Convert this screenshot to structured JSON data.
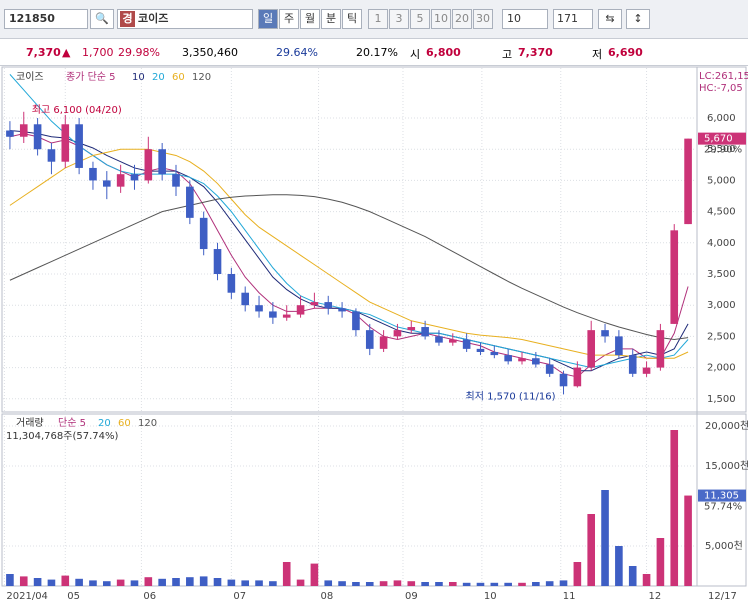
{
  "toolbar": {
    "code": "121850",
    "badge": "경",
    "name": "코이즈",
    "periods": [
      "일",
      "주",
      "월",
      "분",
      "틱"
    ],
    "intervals": [
      "1",
      "3",
      "5",
      "10",
      "20",
      "30"
    ],
    "count_select": "10",
    "count": "171"
  },
  "info": {
    "price": "7,370",
    "change": "1,700",
    "change_pct": "29.98%",
    "volume": "3,350,460",
    "vol_pct": "29.64%",
    "turnover": "20.17%",
    "open_label": "시",
    "open": "6,800",
    "high_label": "고",
    "high": "7,370",
    "low_label": "저",
    "low": "6,690"
  },
  "chart_data": [
    {
      "type": "candlestick",
      "legend_title": "코이즈",
      "legend_method": "종가 단순 5",
      "corner_labels": [
        "LC:261,15",
        "HC:-7,05"
      ],
      "last_label": "5,670",
      "last_pct": "29.90%",
      "high_note": "최고 6,100 (04/20)",
      "low_note": "최저 1,570 (11/16)",
      "up_color": "#cc3377",
      "down_color": "#3e5ec4",
      "open": [
        5800,
        5700,
        5900,
        5500,
        5300,
        5900,
        5200,
        5000,
        4900,
        5100,
        5000,
        5500,
        5100,
        4900,
        4400,
        3900,
        3500,
        3200,
        3000,
        2900,
        2800,
        2850,
        3000,
        3050,
        2950,
        2900,
        2600,
        2300,
        2500,
        2600,
        2650,
        2500,
        2400,
        2450,
        2300,
        2250,
        2200,
        2100,
        2150,
        2050,
        1900,
        1700,
        2000,
        2600,
        2500,
        2200,
        1900,
        2000,
        2700,
        4300
      ],
      "high": [
        5950,
        6100,
        6000,
        5600,
        6050,
        6000,
        5300,
        5150,
        5250,
        5250,
        5700,
        5600,
        5250,
        5000,
        4500,
        4000,
        3600,
        3300,
        3150,
        3050,
        3000,
        3150,
        3200,
        3150,
        3050,
        2950,
        2700,
        2600,
        2700,
        2750,
        2750,
        2600,
        2550,
        2550,
        2400,
        2350,
        2300,
        2250,
        2250,
        2150,
        1950,
        2100,
        2750,
        2700,
        2600,
        2300,
        2100,
        2700,
        4300,
        5670
      ],
      "low": [
        5500,
        5600,
        5400,
        5100,
        5200,
        5100,
        4850,
        4700,
        4800,
        4850,
        4950,
        5000,
        4750,
        4300,
        3800,
        3400,
        3100,
        2900,
        2800,
        2700,
        2750,
        2800,
        2950,
        2850,
        2800,
        2500,
        2200,
        2250,
        2450,
        2550,
        2450,
        2350,
        2350,
        2250,
        2200,
        2150,
        2050,
        2050,
        2000,
        1850,
        1570,
        1680,
        1950,
        2400,
        2150,
        1850,
        1850,
        1950,
        2700,
        4300
      ],
      "close": [
        5700,
        5900,
        5500,
        5300,
        5900,
        5200,
        5000,
        4900,
        5100,
        5000,
        5500,
        5100,
        4900,
        4400,
        3900,
        3500,
        3200,
        3000,
        2900,
        2800,
        2850,
        3000,
        3050,
        2950,
        2900,
        2600,
        2300,
        2500,
        2600,
        2650,
        2500,
        2400,
        2450,
        2300,
        2250,
        2200,
        2100,
        2150,
        2050,
        1900,
        1700,
        2000,
        2600,
        2500,
        2200,
        1900,
        2000,
        2600,
        4200,
        5670
      ],
      "series": [
        {
          "name": "5",
          "color": "#b0307a",
          "values": [
            5700,
            5750,
            5700,
            5600,
            5650,
            5550,
            5400,
            5250,
            5150,
            5050,
            5150,
            5200,
            5150,
            4950,
            4600,
            4200,
            3800,
            3450,
            3200,
            3000,
            2900,
            2900,
            2950,
            2950,
            2950,
            2850,
            2650,
            2500,
            2450,
            2500,
            2550,
            2500,
            2450,
            2400,
            2350,
            2250,
            2200,
            2150,
            2100,
            2050,
            1900,
            1850,
            2050,
            2200,
            2300,
            2300,
            2150,
            2150,
            2550,
            3300
          ]
        },
        {
          "name": "10",
          "color": "#1e2a78",
          "values": [
            5800,
            5780,
            5750,
            5700,
            5680,
            5600,
            5520,
            5400,
            5300,
            5200,
            5150,
            5150,
            5150,
            5050,
            4900,
            4650,
            4350,
            4050,
            3750,
            3450,
            3250,
            3100,
            3000,
            2950,
            2950,
            2900,
            2800,
            2700,
            2600,
            2550,
            2550,
            2550,
            2500,
            2450,
            2400,
            2350,
            2300,
            2250,
            2200,
            2150,
            2050,
            1950,
            1950,
            2050,
            2150,
            2200,
            2250,
            2200,
            2300,
            2700
          ]
        },
        {
          "name": "20",
          "color": "#22a8d8",
          "values": [
            6700,
            6450,
            6200,
            5950,
            5750,
            5550,
            5400,
            5250,
            5150,
            5100,
            5100,
            5100,
            5100,
            5050,
            4950,
            4750,
            4500,
            4200,
            3900,
            3600,
            3350,
            3150,
            3050,
            3000,
            2950,
            2900,
            2850,
            2750,
            2650,
            2600,
            2550,
            2550,
            2500,
            2450,
            2400,
            2350,
            2300,
            2250,
            2200,
            2150,
            2100,
            2050,
            2000,
            2050,
            2100,
            2150,
            2200,
            2150,
            2200,
            2450
          ]
        },
        {
          "name": "60",
          "color": "#e8b020",
          "values": [
            4600,
            4750,
            4900,
            5050,
            5200,
            5300,
            5400,
            5450,
            5500,
            5500,
            5500,
            5450,
            5400,
            5300,
            5150,
            4950,
            4700,
            4450,
            4250,
            4100,
            3950,
            3800,
            3650,
            3500,
            3350,
            3200,
            3050,
            2950,
            2850,
            2750,
            2700,
            2650,
            2600,
            2550,
            2520,
            2500,
            2480,
            2450,
            2400,
            2350,
            2300,
            2250,
            2200,
            2200,
            2200,
            2180,
            2150,
            2150,
            2150,
            2250
          ]
        },
        {
          "name": "120",
          "color": "#555555",
          "values": [
            3400,
            3500,
            3600,
            3700,
            3800,
            3900,
            4000,
            4100,
            4200,
            4300,
            4400,
            4500,
            4550,
            4600,
            4650,
            4700,
            4730,
            4750,
            4760,
            4770,
            4770,
            4760,
            4740,
            4700,
            4650,
            4580,
            4500,
            4400,
            4300,
            4200,
            4100,
            3980,
            3860,
            3740,
            3620,
            3500,
            3380,
            3270,
            3170,
            3070,
            2970,
            2880,
            2800,
            2720,
            2650,
            2590,
            2530,
            2480,
            2450,
            2480
          ]
        }
      ],
      "ylim": [
        1320,
        6770
      ],
      "yticks": [
        {
          "value": 1500,
          "label": "1,500"
        },
        {
          "value": 2000,
          "label": "2,000"
        },
        {
          "value": 2500,
          "label": "2,500"
        },
        {
          "value": 3000,
          "label": "3,000"
        },
        {
          "value": 3500,
          "label": "3,500"
        },
        {
          "value": 4000,
          "label": "4,000"
        },
        {
          "value": 4500,
          "label": "4,500"
        },
        {
          "value": 5000,
          "label": "5,000"
        },
        {
          "value": 5500,
          "label": "5,500"
        },
        {
          "value": 6000,
          "label": "6,000"
        }
      ]
    },
    {
      "type": "bar",
      "legend_title": "거래량",
      "legend_method": "단순 5",
      "legend_periods": [
        "20",
        "60",
        "120"
      ],
      "summary": "11,304,768주(57.74%)",
      "last_label": "11,305",
      "last_pct": "57.74%",
      "values": [
        1500,
        1200,
        1000,
        800,
        1300,
        900,
        700,
        600,
        800,
        700,
        1100,
        900,
        1000,
        1100,
        1200,
        1000,
        800,
        700,
        700,
        600,
        3000,
        800,
        2800,
        700,
        600,
        500,
        500,
        600,
        700,
        600,
        500,
        500,
        500,
        400,
        400,
        400,
        400,
        400,
        500,
        600,
        700,
        3000,
        9000,
        12000,
        5000,
        2500,
        1500,
        6000,
        19500,
        11305
      ],
      "ylim": [
        0,
        21000
      ],
      "yticks": [
        {
          "value": 5000,
          "label": "5,000천"
        },
        {
          "value": 15000,
          "label": "15,000천"
        },
        {
          "value": 20000,
          "label": "20,000천"
        }
      ],
      "xlim": [
        -0.5,
        49.5
      ],
      "xticks": [
        {
          "value": -0.4,
          "label": "2021/04"
        },
        {
          "value": 4,
          "label": "05"
        },
        {
          "value": 9.5,
          "label": "06"
        },
        {
          "value": 16,
          "label": "07"
        },
        {
          "value": 22.3,
          "label": "08"
        },
        {
          "value": 28.4,
          "label": "09"
        },
        {
          "value": 34.1,
          "label": "10"
        },
        {
          "value": 39.8,
          "label": "11"
        },
        {
          "value": 46,
          "label": "12"
        }
      ],
      "end_label": "12/17"
    }
  ]
}
